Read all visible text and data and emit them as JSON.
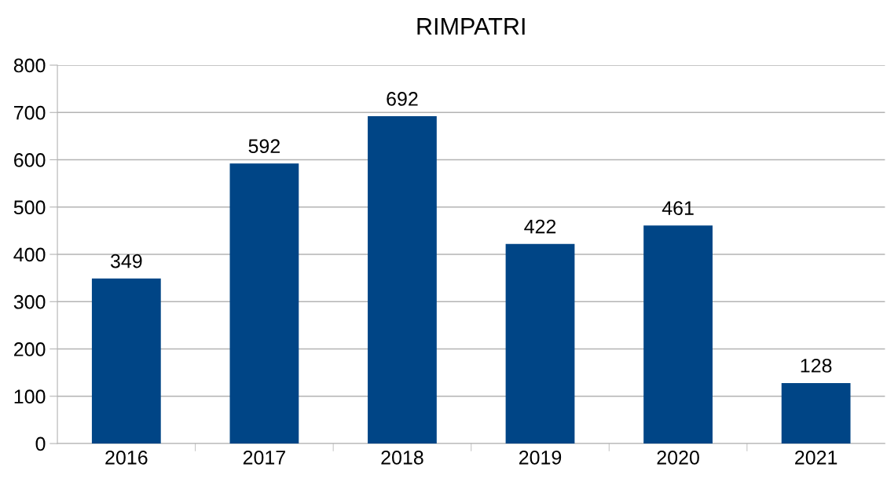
{
  "chart_data": {
    "type": "bar",
    "title": "RIMPATRI",
    "categories": [
      "2016",
      "2017",
      "2018",
      "2019",
      "2020",
      "2021"
    ],
    "values": [
      349,
      592,
      692,
      422,
      461,
      128
    ],
    "color": "#004586",
    "ylim": [
      0,
      800
    ],
    "yticks": [
      0,
      100,
      200,
      300,
      400,
      500,
      600,
      700,
      800
    ],
    "grid": "y",
    "data_labels": true
  }
}
